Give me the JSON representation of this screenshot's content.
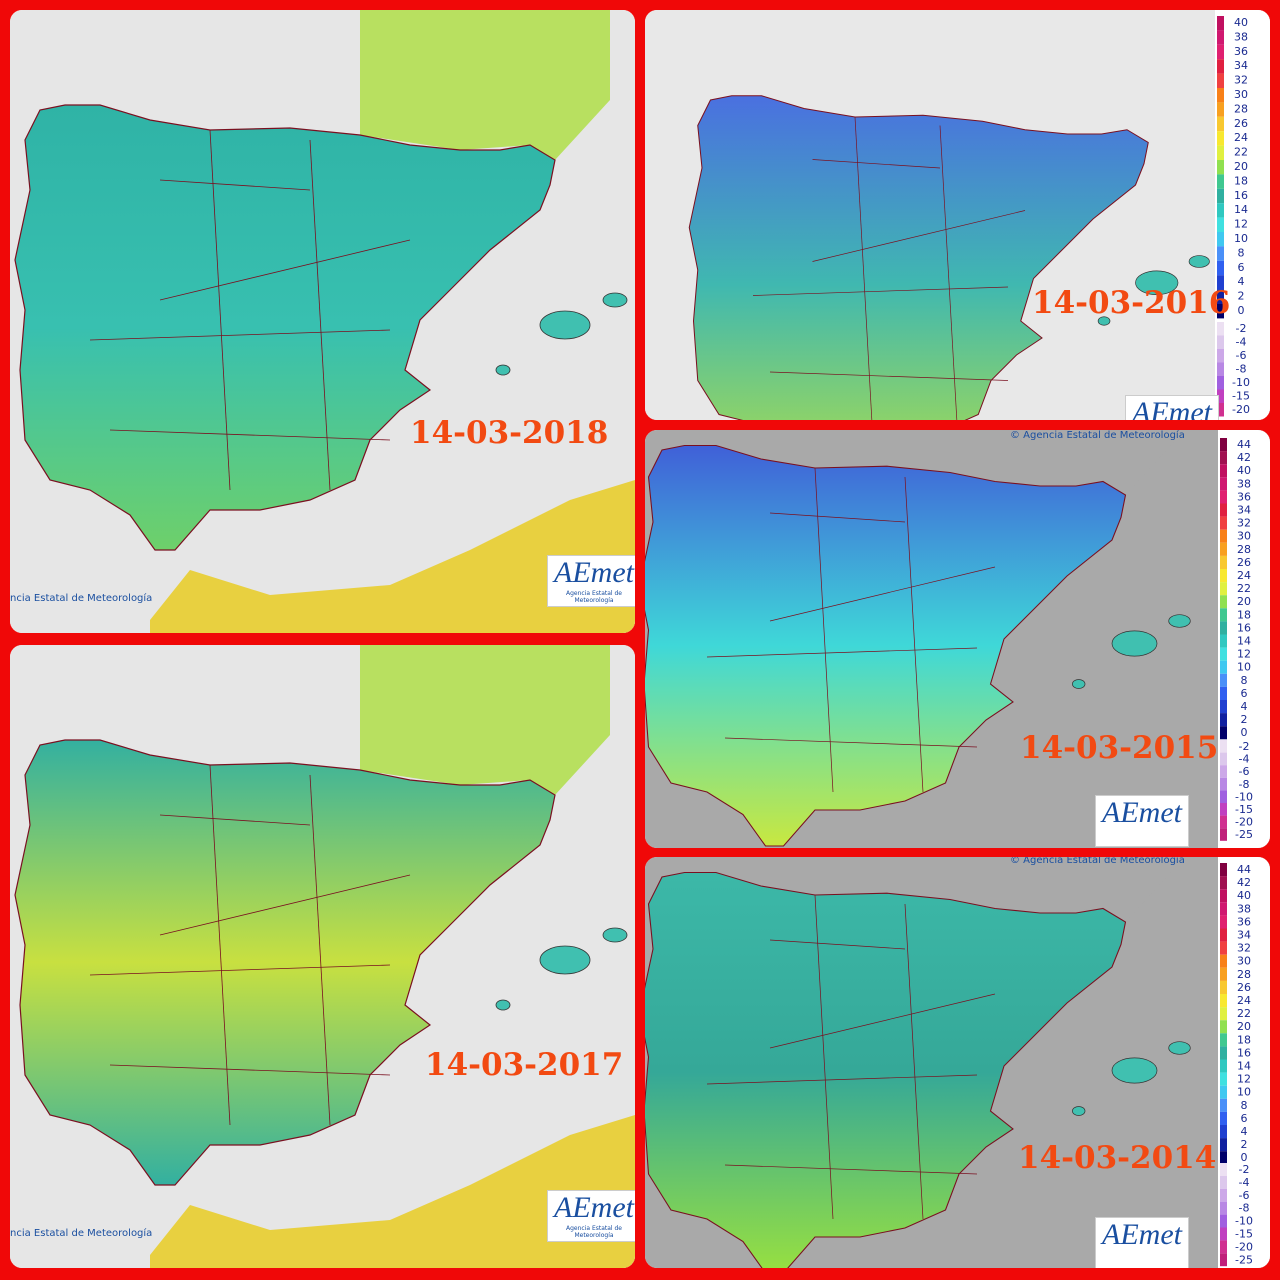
{
  "panels": [
    {
      "date": "14-03-2018",
      "credit": "ncia Estatal de Meteorología",
      "logo": {
        "name": "AEmet",
        "subtitle": "Agencia Estatal de Meteorología"
      }
    },
    {
      "date": "14-03-2016",
      "logo": {
        "name": "AEmet"
      },
      "legend": {
        "positive": [
          40,
          38,
          36,
          34,
          32,
          30,
          28,
          26,
          24,
          22,
          20,
          18,
          16,
          14,
          12,
          10,
          8,
          6,
          4,
          2,
          0
        ],
        "negative": [
          -2,
          -4,
          -6,
          -8,
          -10,
          -15,
          -20
        ]
      }
    },
    {
      "date": "14-03-2015",
      "credit": "© Agencia Estatal de Meteorología",
      "logo": {
        "name": "AEmet"
      },
      "legend": {
        "positive": [
          44,
          42,
          40,
          38,
          36,
          34,
          32,
          30,
          28,
          26,
          24,
          22,
          20,
          18,
          16,
          14,
          12,
          10,
          8,
          6,
          4,
          2,
          0
        ],
        "negative": [
          -2,
          -4,
          -6,
          -8,
          -10,
          -15,
          -20,
          -25
        ]
      }
    },
    {
      "date": "14-03-2017",
      "credit": "ncia Estatal de Meteorología",
      "logo": {
        "name": "AEmet",
        "subtitle": "Agencia Estatal de Meteorología"
      }
    },
    {
      "date": "14-03-2014",
      "credit": "© Agencia Estatal de Meteorología",
      "logo": {
        "name": "AEmet"
      },
      "legend": {
        "positive": [
          44,
          42,
          40,
          38,
          36,
          34,
          32,
          30,
          28,
          26,
          24,
          22,
          20,
          18,
          16,
          14,
          12,
          10,
          8,
          6,
          4,
          2,
          0
        ],
        "negative": [
          -2,
          -4,
          -6,
          -8,
          -10,
          -15,
          -20,
          -25
        ]
      }
    }
  ]
}
